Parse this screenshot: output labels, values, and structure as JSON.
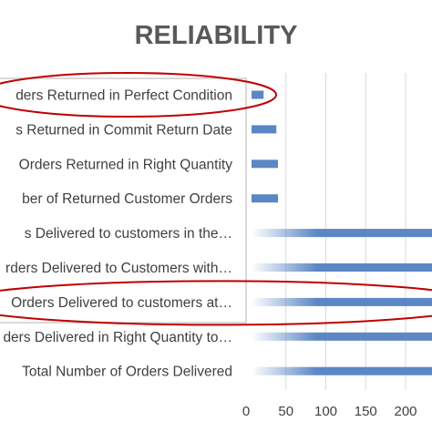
{
  "chart_data": {
    "type": "bar",
    "orientation": "horizontal",
    "title": "RELIABILITY",
    "xlabel": "",
    "ylabel": "",
    "categories": [
      "Number of Orders Returned in Perfect Condition",
      "Number of Orders Returned in Commit Return Date",
      "Number of Orders Returned in Right Quantity",
      "Total Number of Returned Customer Orders",
      "Number of Orders Delivered to customers  in the…",
      "Number of Orders Delivered to Customers with…",
      "Number of Orders Delivered to customers at…",
      "Number of Orders Delivered in Right Quantity to…",
      "Total Number of Orders Delivered"
    ],
    "visible_labels": [
      "ders Returned in Perfect Condition",
      "s Returned in Commit Return Date",
      "Orders Returned in Right Quantity",
      "ber of Returned Customer Orders",
      "s Delivered to customers  in the…",
      "rders Delivered to Customers with…",
      "Orders Delivered to customers at…",
      "ders Delivered in Right Quantity to…",
      "Total Number of Orders Delivered"
    ],
    "values": [
      22,
      38,
      40,
      40,
      240,
      240,
      240,
      240,
      240
    ],
    "xticks": [
      0,
      50,
      100,
      150,
      200
    ],
    "xlim": [
      0,
      240
    ],
    "grid": true,
    "legend": "none",
    "highlighted_categories": [
      0,
      6
    ],
    "colors": {
      "bar": "#5b87c5",
      "gridline": "#d9d9d9",
      "highlight_ellipse": "#c00000",
      "label_box": "#d9d9d9"
    }
  }
}
